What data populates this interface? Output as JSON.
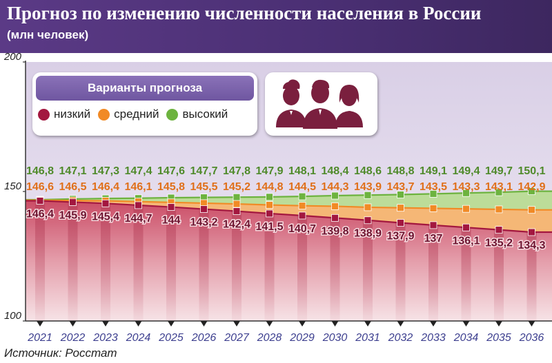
{
  "header": {
    "title": "Прогноз по изменению численности населения в России",
    "subtitle": "(млн человек)"
  },
  "legend": {
    "title": "Варианты прогноза",
    "items": [
      {
        "label": "низкий",
        "color": "#a3173f"
      },
      {
        "label": "средний",
        "color": "#f18a25"
      },
      {
        "label": "высокий",
        "color": "#6db33f"
      }
    ]
  },
  "people_icon": "people-group-icon",
  "source": "Источник: Росстат",
  "chart_data": {
    "type": "line",
    "title": "Прогноз по изменению численности населения в России",
    "subtitle": "(млн человек)",
    "xlabel": "",
    "ylabel": "",
    "ylim": [
      100,
      200
    ],
    "yticks": [
      "100",
      "150",
      "200"
    ],
    "x": [
      "2021",
      "2022",
      "2023",
      "2024",
      "2025",
      "2026",
      "2027",
      "2028",
      "2029",
      "2030",
      "2031",
      "2032",
      "2033",
      "2034",
      "2035",
      "2036"
    ],
    "grid": false,
    "legend_position": "top-left",
    "series": [
      {
        "name": "высокий",
        "color": "#6db33f",
        "label_color": "#4f8a2a",
        "values": [
          146.8,
          147.1,
          147.3,
          147.4,
          147.6,
          147.7,
          147.8,
          147.9,
          148.1,
          148.4,
          148.6,
          148.8,
          149.1,
          149.4,
          149.7,
          150.1
        ],
        "labels": [
          "146,8",
          "147,1",
          "147,3",
          "147,4",
          "147,6",
          "147,7",
          "147,8",
          "147,9",
          "148,1",
          "148,4",
          "148,6",
          "148,8",
          "149,1",
          "149,4",
          "149,7",
          "150,1"
        ]
      },
      {
        "name": "средний",
        "color": "#f18a25",
        "label_color": "#e0701a",
        "values": [
          146.6,
          146.5,
          146.4,
          146.1,
          145.8,
          145.5,
          145.2,
          144.8,
          144.5,
          144.3,
          143.9,
          143.7,
          143.5,
          143.3,
          143.1,
          142.9
        ],
        "labels": [
          "146,6",
          "146,5",
          "146,4",
          "146,1",
          "145,8",
          "145,5",
          "145,2",
          "144,8",
          "144,5",
          "144,3",
          "143,9",
          "143,7",
          "143,5",
          "143,3",
          "143,1",
          "142,9"
        ]
      },
      {
        "name": "низкий",
        "color": "#a3173f",
        "label_color": "#6e1430",
        "values": [
          146.4,
          145.9,
          145.4,
          144.7,
          144,
          143.2,
          142.4,
          141.5,
          140.7,
          139.8,
          138.9,
          137.9,
          137,
          136.1,
          135.2,
          134.3
        ],
        "labels": [
          "146,4",
          "145,9",
          "145,4",
          "144,7",
          "144",
          "143,2",
          "142,4",
          "141,5",
          "140,7",
          "139,8",
          "138,9",
          "137,9",
          "137",
          "136,1",
          "135,2",
          "134,3"
        ]
      }
    ],
    "source": "Источник: Росстат"
  }
}
